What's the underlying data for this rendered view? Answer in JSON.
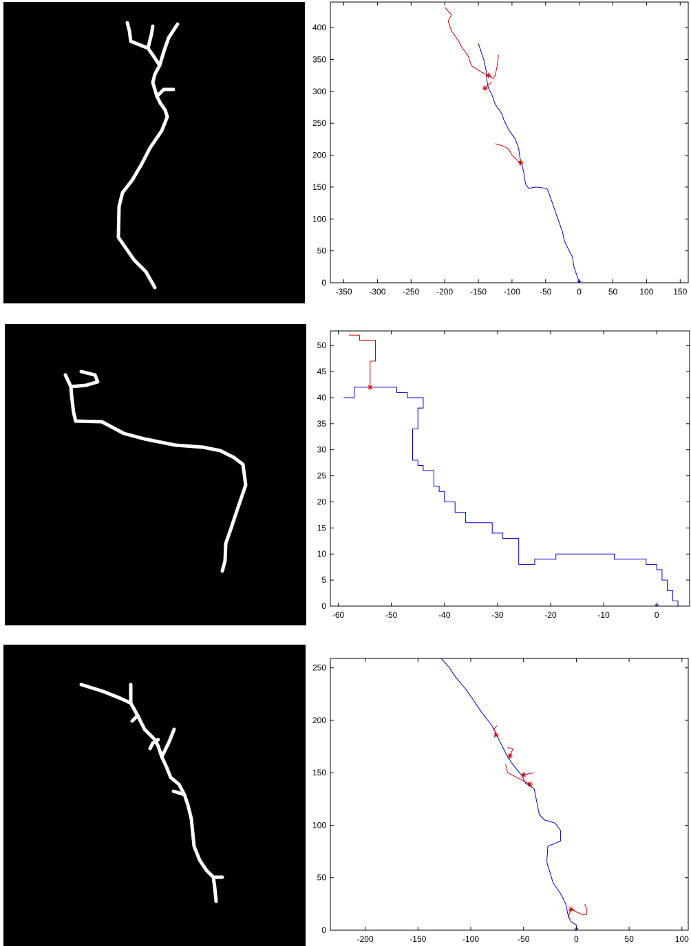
{
  "chart_data": [
    {
      "type": "line",
      "xlim": [
        -370,
        162
      ],
      "ylim": [
        0,
        440
      ],
      "xticks": [
        -350,
        -300,
        -250,
        -200,
        -150,
        -100,
        -50,
        0,
        50,
        100,
        150
      ],
      "yticks": [
        0,
        50,
        100,
        150,
        200,
        250,
        300,
        350,
        400
      ],
      "series": [
        {
          "color": "#0000c8",
          "x": [
            0,
            -3,
            -8,
            -10,
            -15,
            -22,
            -25,
            -30,
            -35,
            -40,
            -45,
            -48,
            -65,
            -75,
            -80,
            -82,
            -85,
            -88,
            -90,
            -95,
            -105,
            -112,
            -115,
            -125,
            -130,
            -135,
            -137,
            -138,
            -142,
            -150
          ],
          "y": [
            0,
            10,
            25,
            40,
            50,
            65,
            80,
            95,
            110,
            125,
            140,
            148,
            150,
            148,
            155,
            170,
            185,
            195,
            210,
            225,
            240,
            255,
            265,
            280,
            295,
            305,
            315,
            330,
            350,
            375
          ]
        },
        {
          "color": "#c80000",
          "x": [
            -135,
            -145,
            -160,
            -165,
            -175,
            -180,
            -190,
            -195,
            -190,
            -200,
            null,
            -135,
            -128,
            -125,
            -122,
            -120,
            null,
            -140,
            -135,
            -130,
            null,
            -88,
            -95,
            -100,
            -105,
            -115,
            -125
          ],
          "y": [
            325,
            330,
            340,
            355,
            370,
            380,
            395,
            410,
            420,
            432,
            null,
            325,
            320,
            325,
            340,
            357,
            null,
            305,
            310,
            315,
            null,
            188,
            195,
            200,
            210,
            215,
            218
          ]
        },
        {
          "color": "#c80000",
          "marker": "*",
          "line": false,
          "x": [
            -135,
            -140,
            -87
          ],
          "y": [
            325,
            305,
            188
          ]
        },
        {
          "color": "#0000c8",
          "marker": "*",
          "line": false,
          "x": [
            0
          ],
          "y": [
            0
          ]
        }
      ]
    },
    {
      "type": "line",
      "xlim": [
        -61.5,
        6.2
      ],
      "ylim": [
        0,
        52.8
      ],
      "xticks": [
        -60,
        -50,
        -40,
        -30,
        -20,
        -10,
        0
      ],
      "yticks": [
        0,
        5,
        10,
        15,
        20,
        25,
        30,
        35,
        40,
        45,
        50
      ],
      "series": [
        {
          "color": "#0000c8",
          "x": [
            0,
            4,
            4,
            3,
            3,
            2,
            2,
            1,
            1,
            0,
            0,
            -2,
            -2,
            -8,
            -8,
            -19,
            -19,
            -23,
            -23,
            -26,
            -26,
            -29,
            -29,
            -31,
            -31,
            -36,
            -36,
            -38,
            -38,
            -40,
            -40,
            -41,
            -41,
            -42,
            -42,
            -44,
            -44,
            -45,
            -45,
            -46,
            -46,
            -45,
            -45,
            -44,
            -44,
            -47,
            -47,
            -49,
            -49,
            -57,
            -57,
            -59
          ],
          "y": [
            0,
            0,
            1,
            1,
            3,
            3,
            5,
            5,
            7,
            7,
            8,
            8,
            9,
            9,
            10,
            10,
            9,
            9,
            8,
            8,
            13,
            13,
            14,
            14,
            16,
            16,
            18,
            18,
            20,
            20,
            22,
            22,
            23,
            23,
            26,
            26,
            27,
            27,
            28,
            28,
            34,
            34,
            38,
            38,
            40,
            40,
            41,
            41,
            42,
            42,
            40,
            40
          ]
        },
        {
          "color": "#c80000",
          "x": [
            -54,
            -54,
            -53,
            -53,
            -56,
            -56,
            -58
          ],
          "y": [
            42,
            47,
            47,
            51,
            51,
            52,
            52
          ]
        },
        {
          "color": "#c80000",
          "marker": "*",
          "line": false,
          "x": [
            -54
          ],
          "y": [
            42
          ]
        },
        {
          "color": "#0000c8",
          "marker": "*",
          "line": false,
          "x": [
            0
          ],
          "y": [
            0
          ]
        }
      ]
    },
    {
      "type": "line",
      "xlim": [
        -233,
        106
      ],
      "ylim": [
        0,
        259
      ],
      "xticks": [
        -200,
        -150,
        -100,
        -50,
        0,
        50,
        100
      ],
      "yticks": [
        0,
        50,
        100,
        150,
        200,
        250
      ],
      "series": [
        {
          "color": "#0000c8",
          "x": [
            0,
            0,
            -5,
            -8,
            -10,
            -15,
            -22,
            -25,
            -28,
            -27,
            -15,
            -15,
            -20,
            -30,
            -35,
            -38,
            -40,
            -48,
            -52,
            -58,
            -65,
            -70,
            -75,
            -80,
            -90,
            -98,
            -105,
            -115,
            -120,
            -128
          ],
          "y": [
            0,
            5,
            8,
            15,
            25,
            35,
            45,
            55,
            65,
            80,
            85,
            95,
            102,
            105,
            110,
            125,
            135,
            140,
            148,
            155,
            165,
            175,
            185,
            195,
            208,
            220,
            230,
            242,
            250,
            259
          ]
        },
        {
          "color": "#c80000",
          "x": [
            -5,
            5,
            10,
            10,
            8,
            null,
            -5,
            -8,
            null,
            -44,
            -55,
            -65,
            -67,
            null,
            -50,
            -40,
            null,
            -63,
            -60,
            -65,
            null,
            -76,
            -78,
            -75
          ],
          "y": [
            20,
            15,
            15,
            20,
            25,
            null,
            20,
            12,
            null,
            139,
            145,
            150,
            158,
            null,
            148,
            150,
            null,
            166,
            173,
            174,
            null,
            186,
            192,
            195
          ]
        },
        {
          "color": "#c80000",
          "marker": "*",
          "line": false,
          "x": [
            -5,
            -44,
            -50,
            -63,
            -76
          ],
          "y": [
            20,
            139,
            148,
            166,
            186
          ]
        },
        {
          "color": "#0000c8",
          "marker": "*",
          "line": false,
          "x": [
            0
          ],
          "y": [
            0
          ]
        }
      ]
    }
  ]
}
